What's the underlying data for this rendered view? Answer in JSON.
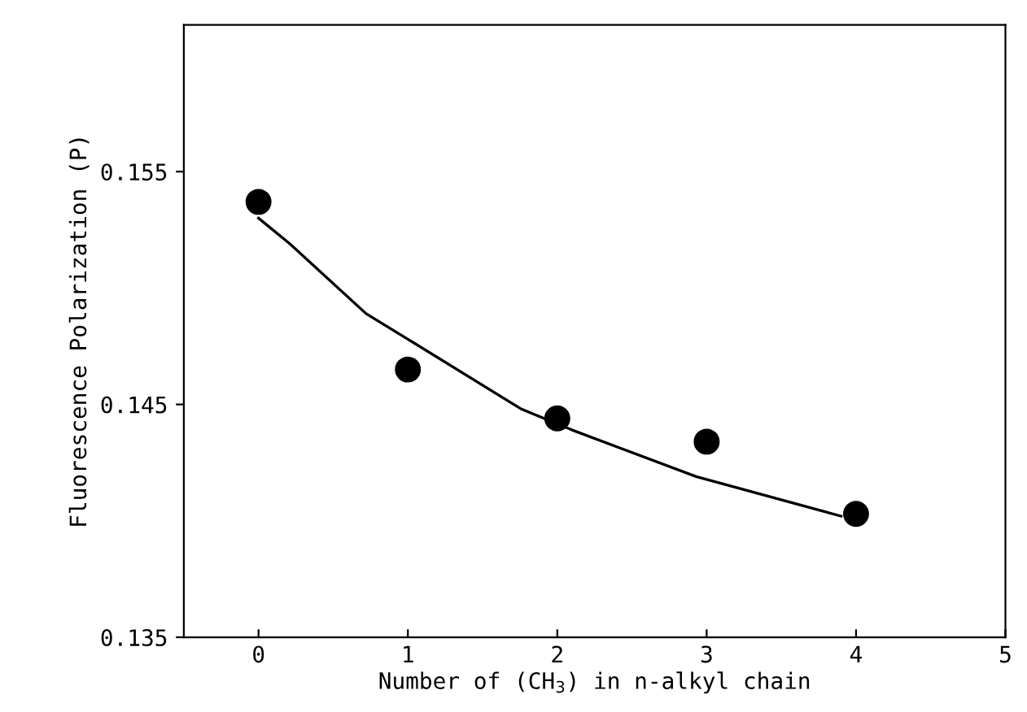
{
  "chart_data": {
    "type": "scatter",
    "xlabel": "Number of (CH$_{3}$) in n-alkyl chain",
    "ylabel": "Fluorescence Polarization (P)",
    "x": [
      0,
      1,
      2,
      3,
      4
    ],
    "series": [
      {
        "color": "#000000",
        "marker": "circle",
        "values": [
          0.1537,
          0.1465,
          0.1444,
          0.1434,
          0.1403
        ]
      },
      {
        "type": "line",
        "color": "#000000",
        "marker": "none",
        "x": [
          0.0,
          0.21,
          0.72,
          1.0,
          1.76,
          2.1,
          2.93,
          3.9
        ],
        "values": [
          0.153,
          0.1519,
          0.1489,
          0.1478,
          0.1448,
          0.1439,
          0.1419,
          0.1402
        ]
      }
    ],
    "xlim": [
      -0.5,
      5
    ],
    "xticks": [
      0,
      1,
      2,
      3,
      4,
      5
    ],
    "ylim": [
      0.135,
      0.1613
    ],
    "yticks": [
      {
        "value": 0.135,
        "label": "0.135"
      },
      {
        "value": 0.145,
        "label": "0.145"
      },
      {
        "value": 0.155,
        "label": "0.155"
      }
    ],
    "grid": false,
    "legend": false
  }
}
